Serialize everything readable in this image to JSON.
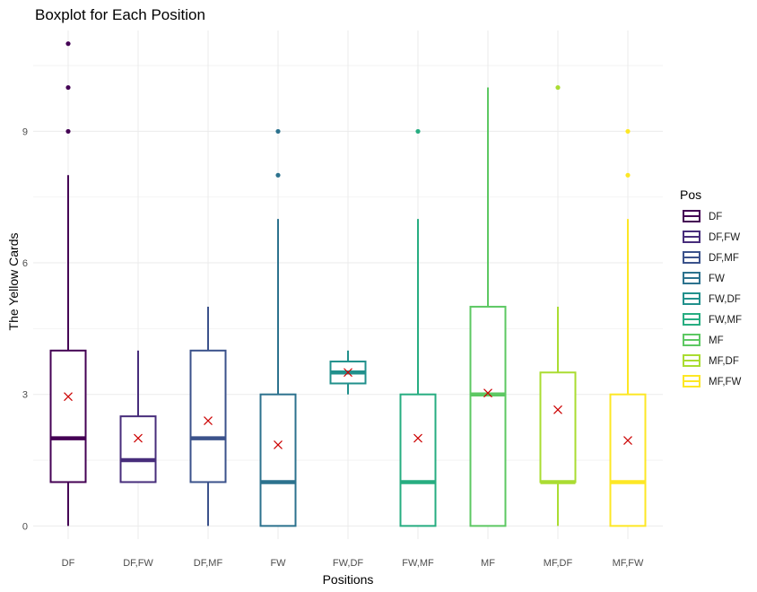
{
  "chart_data": {
    "type": "boxplot",
    "title": "Boxplot for Each Position",
    "xlabel": "Positions",
    "ylabel": "The Yellow Cards",
    "ylim": [
      -0.3,
      11.3
    ],
    "yticks": [
      0,
      3,
      6,
      9
    ],
    "grid": true,
    "legend": {
      "title": "Pos",
      "placement": "right"
    },
    "mean_marker": "x",
    "mean_color": "#cc0000",
    "categories": [
      "DF",
      "DF,FW",
      "DF,MF",
      "FW",
      "FW,DF",
      "FW,MF",
      "MF",
      "MF,DF",
      "MF,FW"
    ],
    "series": [
      {
        "name": "DF",
        "color": "#440154",
        "min": 0,
        "q1": 1,
        "median": 2,
        "q3": 4,
        "max": 8,
        "mean": 2.95,
        "outliers": [
          9,
          10,
          11
        ]
      },
      {
        "name": "DF,FW",
        "color": "#472D7B",
        "min": 1,
        "q1": 1,
        "median": 1.5,
        "q3": 2.5,
        "max": 4,
        "mean": 2.0,
        "outliers": []
      },
      {
        "name": "DF,MF",
        "color": "#3B528B",
        "min": 0,
        "q1": 1,
        "median": 2,
        "q3": 4,
        "max": 5,
        "mean": 2.4,
        "outliers": []
      },
      {
        "name": "FW",
        "color": "#2C728E",
        "min": 0,
        "q1": 0,
        "median": 1,
        "q3": 3,
        "max": 7,
        "mean": 1.85,
        "outliers": [
          8,
          9
        ]
      },
      {
        "name": "FW,DF",
        "color": "#21908C",
        "min": 3,
        "q1": 3.25,
        "median": 3.5,
        "q3": 3.75,
        "max": 4,
        "mean": 3.5,
        "outliers": []
      },
      {
        "name": "FW,MF",
        "color": "#27AD81",
        "min": 0,
        "q1": 0,
        "median": 1,
        "q3": 3,
        "max": 7,
        "mean": 2.0,
        "outliers": [
          9
        ]
      },
      {
        "name": "MF",
        "color": "#5DC863",
        "min": 0,
        "q1": 0,
        "median": 3,
        "q3": 5,
        "max": 10,
        "mean": 3.03,
        "outliers": []
      },
      {
        "name": "MF,DF",
        "color": "#AADC32",
        "min": 0,
        "q1": 1,
        "median": 1,
        "q3": 3.5,
        "max": 5,
        "mean": 2.65,
        "outliers": [
          10
        ]
      },
      {
        "name": "MF,FW",
        "color": "#FDE725",
        "min": 0,
        "q1": 0,
        "median": 1,
        "q3": 3,
        "max": 7,
        "mean": 1.95,
        "outliers": [
          8,
          9
        ]
      }
    ]
  }
}
